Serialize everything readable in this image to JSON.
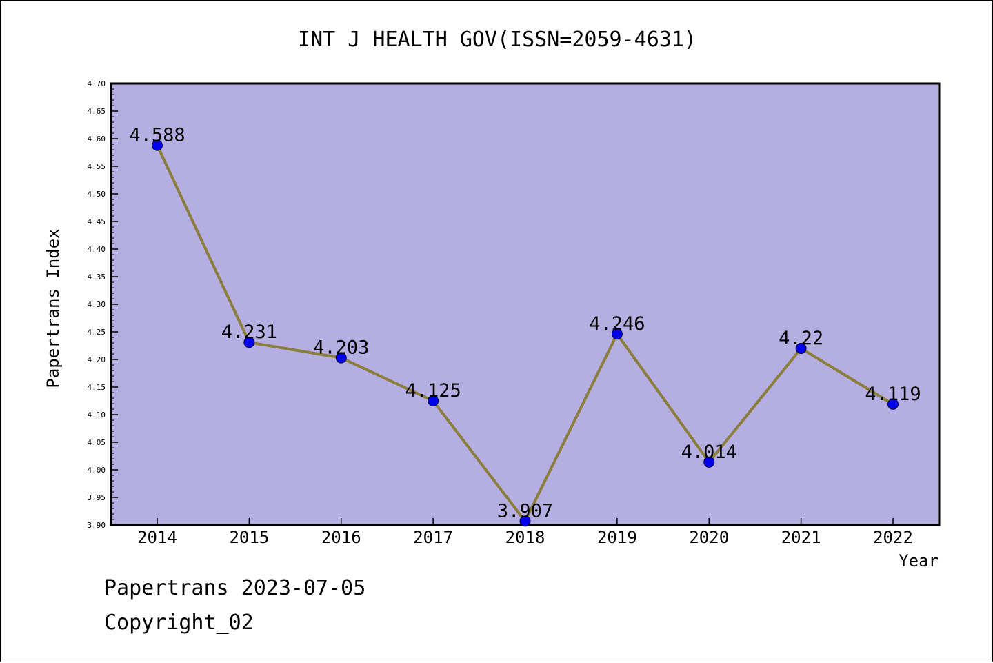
{
  "chart_data": {
    "type": "line",
    "title": "INT J HEALTH GOV(ISSN=2059-4631)",
    "xlabel": "Year",
    "ylabel": "Papertrans Index",
    "categories": [
      "2014",
      "2015",
      "2016",
      "2017",
      "2018",
      "2019",
      "2020",
      "2021",
      "2022"
    ],
    "series": [
      {
        "values": [
          4.588,
          4.231,
          4.203,
          4.125,
          3.907,
          4.246,
          4.014,
          4.22,
          4.119
        ],
        "labels": [
          "4.588",
          "4.231",
          "4.203",
          "4.125",
          "3.907",
          "4.246",
          "4.014",
          "4.22",
          "4.119"
        ],
        "line_color": "#8b7d3a",
        "marker_color": "#0000ee"
      }
    ],
    "ylim": [
      3.9,
      4.7
    ],
    "yticks": [
      "3.90",
      "3.95",
      "4.00",
      "4.05",
      "4.10",
      "4.15",
      "4.20",
      "4.25",
      "4.30",
      "4.35",
      "4.40",
      "4.45",
      "4.50",
      "4.55",
      "4.60",
      "4.65",
      "4.70"
    ],
    "grid": false,
    "plot_background": "#b4aee2"
  },
  "footer": {
    "line1": "Papertrans 2023-07-05",
    "line2": "Copyright_02"
  }
}
